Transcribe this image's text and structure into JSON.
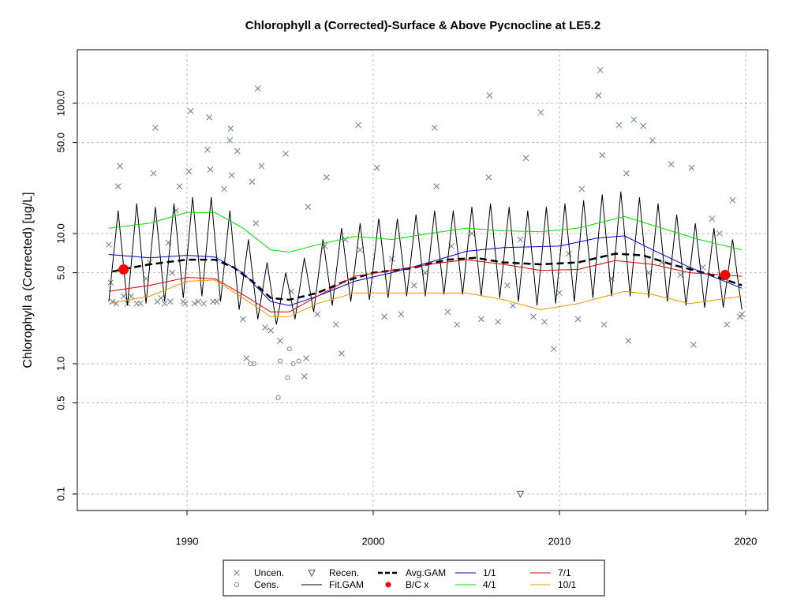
{
  "chart_data": {
    "type": "line",
    "title": "Chlorophyll a (Corrected)-Surface & Above Pycnocline at LE5.2",
    "y_label": "Chlorophyll a (Corrected) [ug/L]",
    "log_y": true,
    "grid": true,
    "legend": "bottom",
    "xlim": [
      1984.11,
      2021.19
    ],
    "ylim": [
      0.0746,
      258
    ],
    "xticks": [
      1990,
      2000,
      2010,
      2020
    ],
    "yticks": [
      0.1,
      0.5,
      {
        "value": 1,
        "label": "1.0"
      },
      {
        "value": 5,
        "label": "5.0"
      },
      {
        "value": 10,
        "label": "10.0"
      },
      {
        "value": 50,
        "label": "50.0"
      },
      {
        "value": 100,
        "label": "100.0"
      }
    ],
    "series": [
      {
        "name": "Uncen.",
        "color": "#6b7b8c",
        "marker": "x",
        "x": [
          1985.8,
          1985.9,
          1986.0,
          1986.3,
          1986.4,
          1986.6,
          1987.0,
          1987.3,
          1987.8,
          1988.0,
          1988.2,
          1988.3,
          1988.6,
          1988.8,
          1989.0,
          1989.2,
          1989.4,
          1989.6,
          1989.8,
          1990.1,
          1990.2,
          1990.6,
          1991.1,
          1991.2,
          1991.25,
          1991.6,
          1992.0,
          1992.3,
          1992.35,
          1992.4,
          1992.7,
          1993.0,
          1993.2,
          1993.5,
          1993.7,
          1993.8,
          1994.0,
          1994.2,
          1994.5,
          1995.0,
          1995.3,
          1995.6,
          1996.3,
          1996.4,
          1996.5,
          1997.0,
          1997.4,
          1997.5,
          1998.0,
          1998.3,
          1998.5,
          1999.2,
          1999.3,
          2000.2,
          2000.6,
          2001.0,
          2001.5,
          2002.2,
          2002.8,
          2003.3,
          2003.4,
          2004.0,
          2004.2,
          2004.5,
          2005.3,
          2005.8,
          2006.2,
          2006.25,
          2006.7,
          2007.2,
          2007.5,
          2007.9,
          2008.2,
          2008.6,
          2009.0,
          2009.2,
          2009.7,
          2010.0,
          2010.5,
          2011.0,
          2011.2,
          2012.1,
          2012.2,
          2012.3,
          2012.4,
          2012.8,
          2013.2,
          2013.6,
          2013.7,
          2014.0,
          2014.5,
          2014.8,
          2015.0,
          2015.5,
          2016.0,
          2016.5,
          2017.1,
          2017.2,
          2017.7,
          2018.2,
          2018.6,
          2019.0,
          2019.3,
          2019.7,
          2019.8,
          1986.2,
          1986.8,
          1987.5,
          1988.4,
          1989.1,
          1989.9,
          1990.4,
          1990.9,
          1991.4
        ],
        "values": [
          8.2,
          4.2,
          3.0,
          23,
          33,
          3.3,
          3.3,
          2.9,
          4.5,
          6.0,
          29,
          65,
          3.2,
          2.9,
          8.5,
          5.0,
          15,
          23,
          3.0,
          30,
          87,
          3.0,
          44,
          78,
          31,
          3.0,
          22,
          52,
          64,
          28,
          43,
          2.2,
          1.1,
          25,
          12,
          130,
          33,
          1.9,
          1.8,
          1.5,
          41,
          3.6,
          0.8,
          1.1,
          16,
          2.4,
          8.0,
          27,
          2.0,
          1.2,
          9.0,
          68,
          7.5,
          32,
          2.3,
          6.4,
          2.4,
          4.0,
          5.0,
          65,
          23,
          2.5,
          8.0,
          2.0,
          10,
          2.2,
          27,
          115,
          2.1,
          4.0,
          2.8,
          9.0,
          38,
          2.3,
          85,
          2.1,
          1.3,
          3.5,
          7.0,
          2.2,
          22,
          115,
          180,
          40,
          2.0,
          4.5,
          68,
          29,
          1.5,
          75,
          67,
          5.0,
          52,
          6.0,
          34,
          4.8,
          32,
          1.4,
          5.5,
          13,
          10,
          2.0,
          18,
          2.3,
          2.4,
          2.9,
          2.9,
          2.9,
          3.0,
          3.0,
          2.9,
          2.9,
          2.9,
          3.0
        ]
      },
      {
        "name": "Cens.",
        "color": "#808080",
        "marker": "o",
        "x": [
          1993.4,
          1993.6,
          1994.9,
          1995.0,
          1995.4,
          1995.5,
          1995.7,
          1996.0
        ],
        "values": [
          1.0,
          1.0,
          0.55,
          1.05,
          0.78,
          1.3,
          1.0,
          1.05
        ]
      },
      {
        "name": "Recen.",
        "color": "#555555",
        "marker": "v",
        "x": [
          2007.9
        ],
        "values": [
          0.1
        ]
      },
      {
        "name": "Fit.GAM",
        "color": "#000000",
        "marker": "line",
        "width": 1,
        "x": [
          1985.8,
          1986.3,
          1986.8,
          1987.3,
          1987.8,
          1988.3,
          1988.8,
          1989.3,
          1989.8,
          1990.3,
          1990.8,
          1991.3,
          1991.8,
          1992.3,
          1992.8,
          1993.3,
          1993.8,
          1994.3,
          1994.8,
          1995.3,
          1995.8,
          1996.3,
          1996.8,
          1997.3,
          1997.8,
          1998.3,
          1998.8,
          1999.3,
          1999.8,
          2000.3,
          2000.8,
          2001.3,
          2001.8,
          2002.3,
          2002.8,
          2003.3,
          2003.8,
          2004.3,
          2004.8,
          2005.3,
          2005.8,
          2006.3,
          2006.8,
          2007.3,
          2007.8,
          2008.3,
          2008.8,
          2009.3,
          2009.8,
          2010.3,
          2010.8,
          2011.3,
          2011.8,
          2012.3,
          2012.8,
          2013.3,
          2013.8,
          2014.3,
          2014.8,
          2015.3,
          2015.8,
          2016.3,
          2016.8,
          2017.3,
          2017.8,
          2018.3,
          2018.8,
          2019.3,
          2019.8
        ],
        "values": [
          3.0,
          15,
          2.8,
          17,
          2.9,
          16,
          3.0,
          17,
          3.2,
          19,
          3.3,
          19,
          3.0,
          15,
          2.6,
          9,
          2.2,
          6,
          2.0,
          5,
          2.2,
          6.5,
          2.5,
          9,
          2.8,
          11,
          3.0,
          12,
          3.1,
          13,
          3.2,
          13,
          3.3,
          14,
          3.3,
          15,
          3.4,
          15,
          3.4,
          16,
          3.3,
          17,
          3.2,
          16,
          3.0,
          15,
          2.8,
          16,
          2.9,
          17,
          3.0,
          18,
          3.2,
          20,
          3.3,
          21,
          3.3,
          19,
          3.2,
          17,
          3.0,
          14,
          2.8,
          12,
          2.7,
          11,
          2.7,
          9,
          2.6
        ]
      },
      {
        "name": "Avg.GAM",
        "color": "#000000",
        "marker": "line",
        "width": 2.5,
        "dash": "9,5",
        "x": [
          1986.0,
          1986.5,
          1988,
          1990,
          1991.5,
          1992.5,
          1993.5,
          1994.5,
          1995.5,
          1997,
          1998.5,
          2000,
          2002,
          2004,
          2005.5,
          2007,
          2009,
          2011,
          2013,
          2014.5,
          2016,
          2018,
          2019.8
        ],
        "values": [
          5.1,
          5.3,
          5.8,
          6.3,
          6.3,
          5.5,
          4.3,
          3.2,
          3.1,
          3.5,
          4.3,
          5.0,
          5.4,
          6.3,
          6.5,
          6.0,
          5.8,
          6.0,
          7.0,
          6.8,
          5.8,
          4.9,
          4.0
        ]
      },
      {
        "name": "B/C x",
        "color": "#ff0000",
        "marker": "dot",
        "x": [
          1986.6,
          2018.9
        ],
        "values": [
          5.3,
          4.8
        ]
      },
      {
        "name": "1/1",
        "color": "#0000cc",
        "marker": "line",
        "width": 1,
        "x": [
          1985.8,
          1988,
          1990,
          1991.5,
          1993,
          1994.5,
          1995.5,
          1997,
          1999,
          2001,
          2003,
          2005,
          2007,
          2010,
          2012,
          2013.5,
          2015,
          2017,
          2019.8
        ],
        "values": [
          6.9,
          6.5,
          6.8,
          6.6,
          5.0,
          3.0,
          2.8,
          3.3,
          4.3,
          5.0,
          6.0,
          7.3,
          7.8,
          8.0,
          9.2,
          9.6,
          7.5,
          5.5,
          3.8
        ]
      },
      {
        "name": "4/1",
        "color": "#00dd00",
        "marker": "line",
        "width": 1,
        "x": [
          1985.8,
          1988,
          1990,
          1991.5,
          1993,
          1994.5,
          1995.5,
          1997,
          1999,
          2001,
          2003,
          2005,
          2007,
          2009,
          2011,
          2013.5,
          2015.5,
          2017.5,
          2019.8
        ],
        "values": [
          11,
          12,
          14.5,
          14.5,
          11,
          7.5,
          7.2,
          8.2,
          9.5,
          9.0,
          10,
          11,
          10.5,
          10.3,
          11,
          13.5,
          11,
          9,
          7.5
        ]
      },
      {
        "name": "7/1",
        "color": "#dd0000",
        "marker": "line",
        "width": 1,
        "x": [
          1985.8,
          1988,
          1990,
          1991.5,
          1993,
          1994.5,
          1995.5,
          1997,
          1999,
          2001,
          2003,
          2005,
          2007,
          2009,
          2011,
          2013,
          2015,
          2017,
          2019.8
        ],
        "values": [
          3.6,
          4.0,
          4.6,
          4.5,
          3.4,
          2.5,
          2.5,
          3.3,
          4.7,
          5.2,
          5.8,
          6.3,
          5.8,
          5.2,
          5.3,
          6.2,
          5.8,
          5.0,
          4.7
        ]
      },
      {
        "name": "10/1",
        "color": "#e69900",
        "marker": "line",
        "width": 1,
        "x": [
          1985.8,
          1988,
          1990,
          1991.5,
          1993,
          1994.5,
          1995.5,
          1997,
          1999,
          2001,
          2003,
          2005,
          2007,
          2009,
          2011,
          2013.5,
          2015,
          2017,
          2019.8
        ],
        "values": [
          2.9,
          3.3,
          4.3,
          4.4,
          3.2,
          2.3,
          2.3,
          2.9,
          3.5,
          3.5,
          3.5,
          3.5,
          3.1,
          2.6,
          2.9,
          3.6,
          3.4,
          2.9,
          3.3
        ]
      }
    ]
  }
}
